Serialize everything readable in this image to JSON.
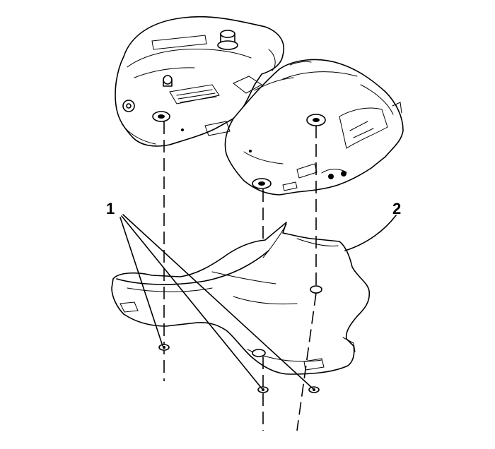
{
  "callouts": {
    "fasteners": "1",
    "shield": "2"
  }
}
